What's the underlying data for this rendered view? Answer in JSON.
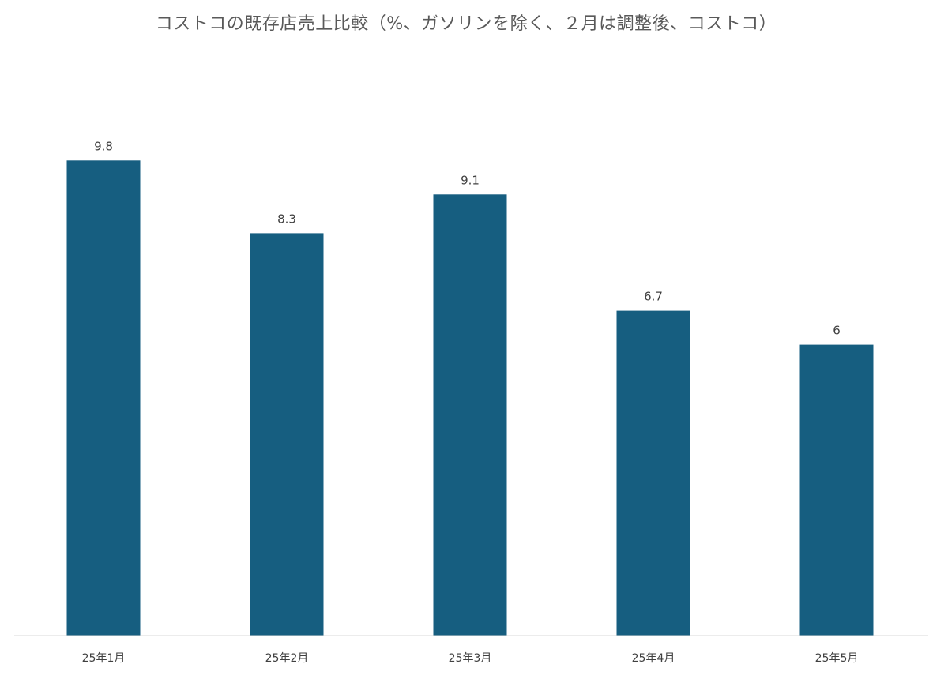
{
  "chart_data": {
    "type": "bar",
    "title": "コストコの既存店売上比較（%、ガソリンを除く、２月は調整後、コストコ）",
    "categories": [
      "25年1月",
      "25年2月",
      "25年3月",
      "25年4月",
      "25年5月"
    ],
    "values": [
      9.8,
      8.3,
      9.1,
      6.7,
      6
    ],
    "ylim": [
      0,
      11.0
    ],
    "grid": false,
    "legend": "none",
    "colors": {
      "bar": "#165e80"
    }
  }
}
